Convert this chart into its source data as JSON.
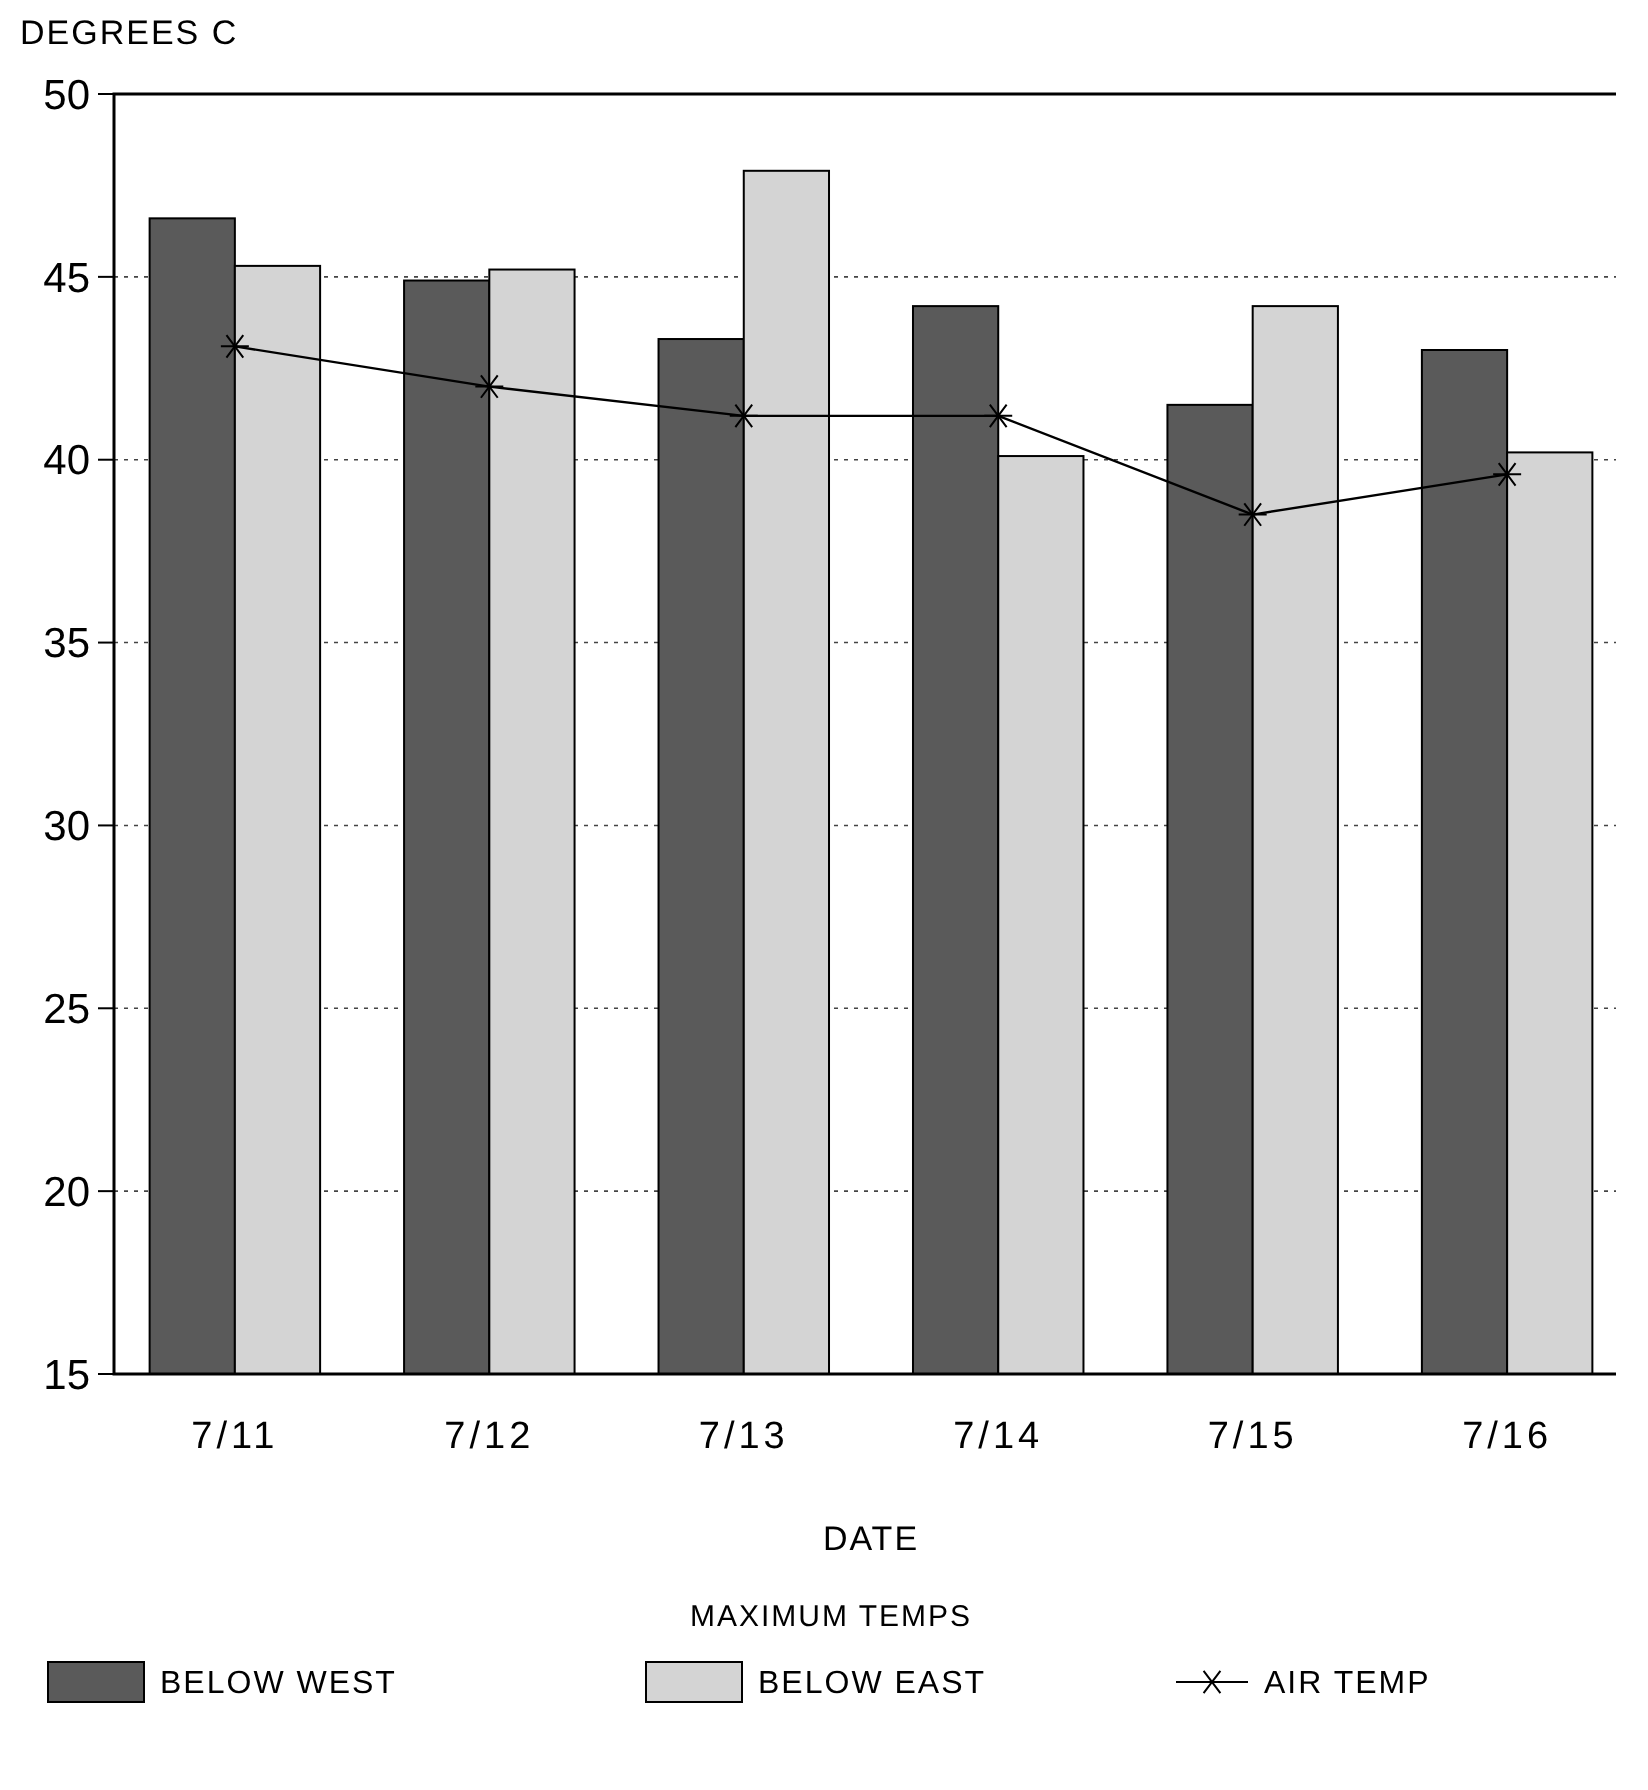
{
  "chart_data": {
    "type": "bar",
    "ylabel": "DEGREES C",
    "xlabel": "DATE",
    "legend_title": "MAXIMUM TEMPS",
    "categories": [
      "7/11",
      "7/12",
      "7/13",
      "7/14",
      "7/15",
      "7/16"
    ],
    "series": [
      {
        "name": "BELOW WEST",
        "color": "#5a5a5a",
        "values": [
          46.6,
          44.9,
          43.3,
          44.2,
          41.5,
          43.0
        ]
      },
      {
        "name": "BELOW EAST",
        "color": "#d4d4d4",
        "values": [
          45.3,
          45.2,
          47.9,
          40.1,
          44.2,
          40.2
        ]
      },
      {
        "name": "AIR TEMP",
        "type": "line",
        "color": "#000000",
        "marker": "cross",
        "values": [
          43.1,
          42.0,
          41.2,
          41.2,
          38.5,
          39.6
        ]
      }
    ],
    "ylim": [
      15,
      50
    ],
    "yticks": [
      15,
      20,
      25,
      30,
      35,
      40,
      45,
      50
    ],
    "grid": "y",
    "legend": "bottom"
  }
}
